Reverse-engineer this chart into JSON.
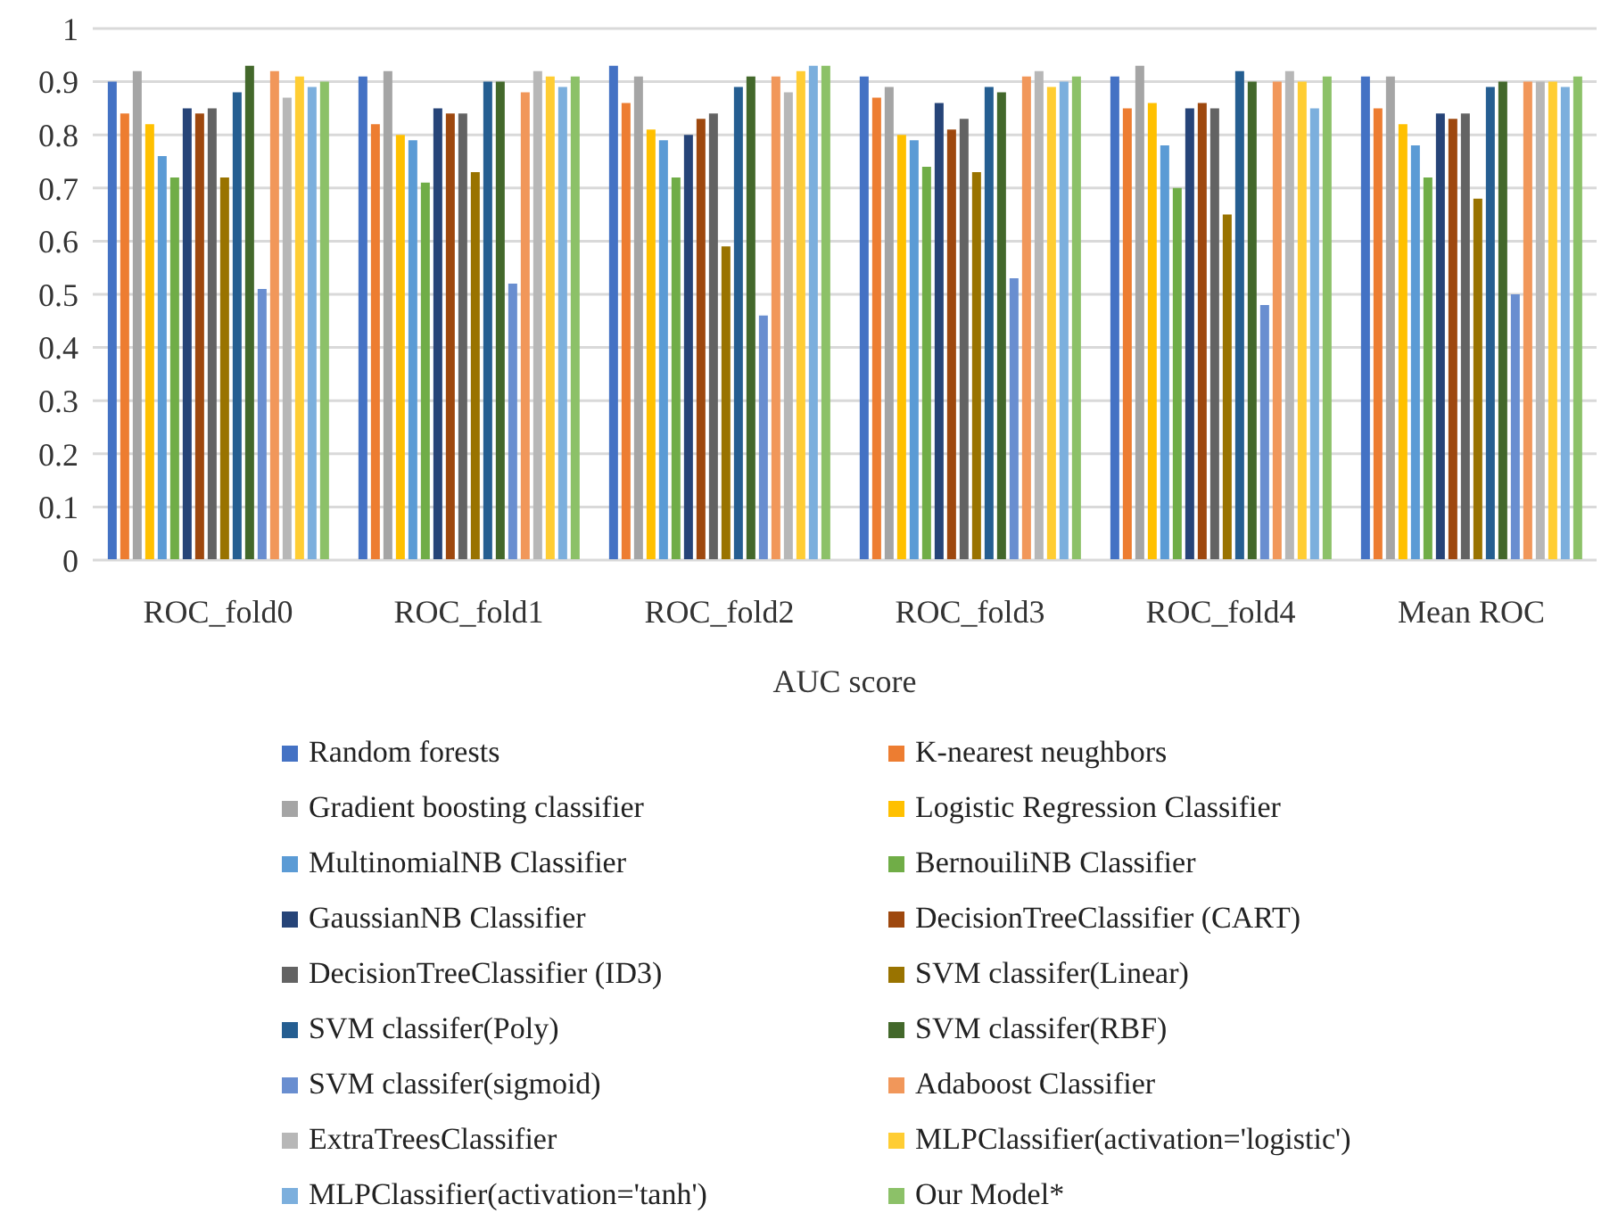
{
  "chart_data": {
    "type": "bar",
    "xlabel": "AUC score",
    "categories": [
      "ROC_fold0",
      "ROC_fold1",
      "ROC_fold2",
      "ROC_fold3",
      "ROC_fold4",
      "Mean ROC"
    ],
    "series": [
      {
        "name": "Random forests",
        "color": "#4472c4",
        "values": [
          0.9,
          0.91,
          0.93,
          0.91,
          0.91,
          0.91
        ]
      },
      {
        "name": "K-nearest neughbors",
        "color": "#ed7d31",
        "values": [
          0.84,
          0.82,
          0.86,
          0.87,
          0.85,
          0.85
        ]
      },
      {
        "name": "Gradient boosting classifier",
        "color": "#a5a5a5",
        "values": [
          0.92,
          0.92,
          0.91,
          0.89,
          0.93,
          0.91
        ]
      },
      {
        "name": "Logistic Regression Classifier",
        "color": "#ffc000",
        "values": [
          0.82,
          0.8,
          0.81,
          0.8,
          0.86,
          0.82
        ]
      },
      {
        "name": "MultinomialNB Classifier",
        "color": "#5b9bd5",
        "values": [
          0.76,
          0.79,
          0.79,
          0.79,
          0.78,
          0.78
        ]
      },
      {
        "name": "BernouiliNB Classifier",
        "color": "#70ad47",
        "values": [
          0.72,
          0.71,
          0.72,
          0.74,
          0.7,
          0.72
        ]
      },
      {
        "name": "GaussianNB Classifier",
        "color": "#264478",
        "values": [
          0.85,
          0.85,
          0.8,
          0.86,
          0.85,
          0.84
        ]
      },
      {
        "name": "DecisionTreeClassifier (CART)",
        "color": "#9e480e",
        "values": [
          0.84,
          0.84,
          0.83,
          0.81,
          0.86,
          0.83
        ]
      },
      {
        "name": "DecisionTreeClassifier (ID3)",
        "color": "#636363",
        "values": [
          0.85,
          0.84,
          0.84,
          0.83,
          0.85,
          0.84
        ]
      },
      {
        "name": "SVM classifer(Linear)",
        "color": "#997300",
        "values": [
          0.72,
          0.73,
          0.59,
          0.73,
          0.65,
          0.68
        ]
      },
      {
        "name": "SVM classifer(Poly)",
        "color": "#255e91",
        "values": [
          0.88,
          0.9,
          0.89,
          0.89,
          0.92,
          0.89
        ]
      },
      {
        "name": "SVM classifer(RBF)",
        "color": "#43682b",
        "values": [
          0.93,
          0.9,
          0.91,
          0.88,
          0.9,
          0.9
        ]
      },
      {
        "name": "SVM classifer(sigmoid)",
        "color": "#698ed0",
        "values": [
          0.51,
          0.52,
          0.46,
          0.53,
          0.48,
          0.5
        ]
      },
      {
        "name": "Adaboost Classifier",
        "color": "#f1975a",
        "values": [
          0.92,
          0.88,
          0.91,
          0.91,
          0.9,
          0.9
        ]
      },
      {
        "name": "ExtraTreesClassifier",
        "color": "#b7b7b7",
        "values": [
          0.87,
          0.92,
          0.88,
          0.92,
          0.92,
          0.9
        ]
      },
      {
        "name": "MLPClassifier(activation='logistic')",
        "color": "#ffcd33",
        "values": [
          0.91,
          0.91,
          0.92,
          0.89,
          0.9,
          0.9
        ]
      },
      {
        "name": "MLPClassifier(activation='tanh')",
        "color": "#7cafdd",
        "values": [
          0.89,
          0.89,
          0.93,
          0.9,
          0.85,
          0.89
        ]
      },
      {
        "name": "Our Model*",
        "color": "#8cc168",
        "values": [
          0.9,
          0.91,
          0.93,
          0.91,
          0.91,
          0.91
        ]
      }
    ],
    "ylim": [
      0,
      1
    ],
    "yticks": [
      0,
      0.1,
      0.2,
      0.3,
      0.4,
      0.5,
      0.6,
      0.7,
      0.8,
      0.9,
      1
    ],
    "grid": "y",
    "legend": "bottom"
  }
}
